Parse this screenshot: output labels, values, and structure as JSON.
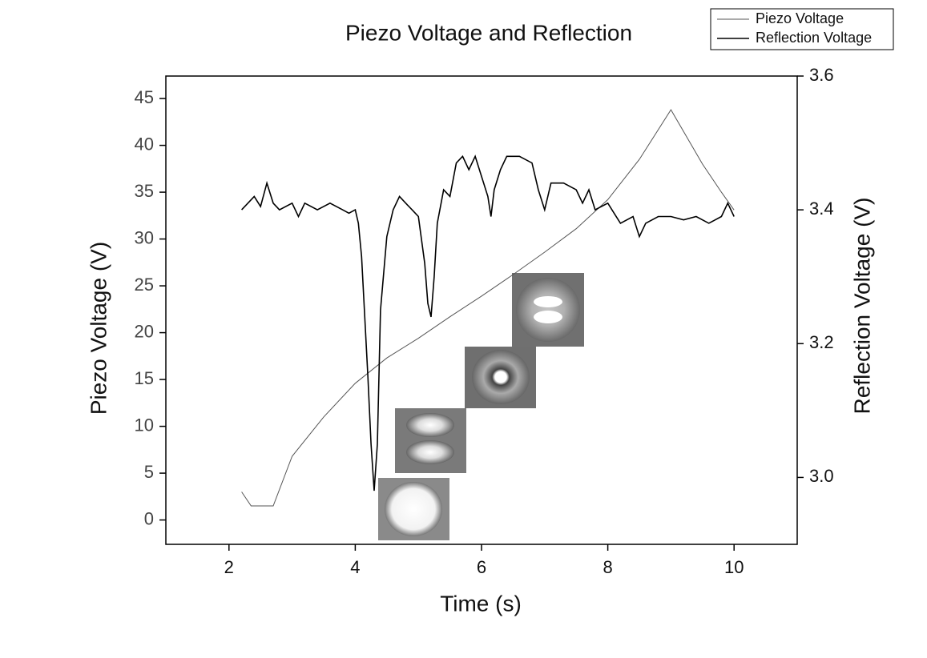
{
  "chart_data": {
    "type": "line",
    "title": "Piezo Voltage and Reflection",
    "x_label": "Time (s)",
    "y_label": "Piezo Voltage (V)",
    "y2_label": "Reflection Voltage (V)",
    "xlim": [
      1,
      11
    ],
    "xticks": [
      2,
      4,
      6,
      8,
      10
    ],
    "ylim": [
      -2.6,
      47.4
    ],
    "yticks": [
      0,
      5,
      10,
      15,
      20,
      25,
      30,
      35,
      40,
      45
    ],
    "y2lim": [
      2.9,
      3.6
    ],
    "y2ticks": [
      {
        "value": 3,
        "label": "3.0"
      },
      3.2,
      3.4,
      3.6
    ],
    "legend": "top-right",
    "series": [
      {
        "name": "Piezo Voltage",
        "color": "#555555",
        "x": [
          2.2,
          2.35,
          2.7,
          3.0,
          3.5,
          4.0,
          4.5,
          5.0,
          5.5,
          6.0,
          6.5,
          7.0,
          7.5,
          8.0,
          8.5,
          9.0,
          9.5,
          9.8,
          10.0
        ],
        "values": [
          3,
          1.5,
          1.5,
          6.8,
          11,
          14.6,
          17.3,
          19.4,
          21.7,
          23.9,
          26.2,
          28.6,
          31.1,
          34.2,
          38.5,
          43.8,
          38.0,
          35.0,
          33.1
        ]
      },
      {
        "name": "Reflection Voltage",
        "color": "#000000",
        "axis": "y2",
        "x": [
          2.2,
          2.3,
          2.4,
          2.5,
          2.6,
          2.7,
          2.8,
          3.0,
          3.1,
          3.2,
          3.4,
          3.6,
          3.8,
          3.9,
          4.0,
          4.05,
          4.1,
          4.2,
          4.25,
          4.3,
          4.35,
          4.4,
          4.5,
          4.6,
          4.7,
          4.8,
          4.9,
          5.0,
          5.1,
          5.15,
          5.2,
          5.25,
          5.3,
          5.4,
          5.5,
          5.6,
          5.7,
          5.8,
          5.9,
          6.0,
          6.1,
          6.15,
          6.2,
          6.3,
          6.4,
          6.6,
          6.8,
          6.9,
          7.0,
          7.1,
          7.3,
          7.5,
          7.6,
          7.7,
          7.8,
          8.0,
          8.2,
          8.4,
          8.5,
          8.6,
          8.8,
          9.0,
          9.2,
          9.4,
          9.6,
          9.8,
          9.9,
          10.0
        ],
        "values": [
          3.4,
          3.41,
          3.42,
          3.405,
          3.44,
          3.41,
          3.4,
          3.41,
          3.39,
          3.41,
          3.4,
          3.41,
          3.4,
          3.395,
          3.4,
          3.38,
          3.33,
          3.15,
          3.05,
          2.98,
          3.05,
          3.25,
          3.36,
          3.4,
          3.42,
          3.41,
          3.4,
          3.39,
          3.32,
          3.26,
          3.24,
          3.3,
          3.38,
          3.43,
          3.42,
          3.47,
          3.48,
          3.46,
          3.48,
          3.45,
          3.42,
          3.39,
          3.43,
          3.46,
          3.48,
          3.48,
          3.47,
          3.43,
          3.4,
          3.44,
          3.44,
          3.43,
          3.41,
          3.43,
          3.4,
          3.41,
          3.38,
          3.39,
          3.36,
          3.38,
          3.39,
          3.39,
          3.385,
          3.39,
          3.38,
          3.39,
          3.41,
          3.39
        ]
      }
    ]
  }
}
